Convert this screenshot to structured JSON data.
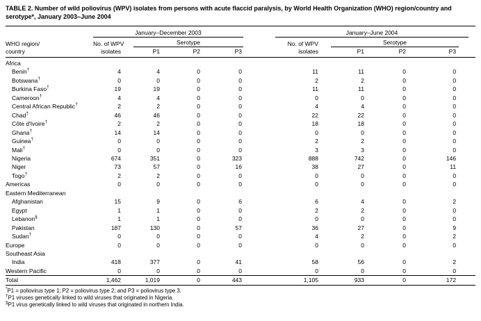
{
  "title": "TABLE 2. Number of wild poliovirus (WPV) isolates from persons with acute flaccid paralysis, by World Health Organization (WHO) region/country and serotype*, January 2003–June 2004",
  "table": {
    "head": {
      "group1": "January–December 2003",
      "group2": "January–June 2004",
      "region1": "WHO region/",
      "region2": "country",
      "isolates1": "No. of WPV",
      "isolates2": "isolates",
      "serotype": "Serotype",
      "p1": "P1",
      "p2": "P2",
      "p3": "P3"
    },
    "rows": [
      {
        "type": "section",
        "name": "Africa"
      },
      {
        "type": "country",
        "name": "Benin",
        "sup": "†",
        "values": [
          "4",
          "4",
          "0",
          "0",
          "11",
          "11",
          "0",
          "0"
        ]
      },
      {
        "type": "country",
        "name": "Botswana",
        "sup": "†",
        "values": [
          "0",
          "0",
          "0",
          "0",
          "2",
          "2",
          "0",
          "0"
        ]
      },
      {
        "type": "country",
        "name": "Burkina Faso",
        "sup": "†",
        "values": [
          "19",
          "19",
          "0",
          "0",
          "11",
          "11",
          "0",
          "0"
        ]
      },
      {
        "type": "country",
        "name": "Cameroon",
        "sup": "†",
        "values": [
          "4",
          "4",
          "0",
          "0",
          "0",
          "0",
          "0",
          "0"
        ]
      },
      {
        "type": "country",
        "name": "Central African Republic",
        "sup": "†",
        "values": [
          "2",
          "2",
          "0",
          "0",
          "4",
          "4",
          "0",
          "0"
        ]
      },
      {
        "type": "country",
        "name": "Chad",
        "sup": "†",
        "values": [
          "46",
          "46",
          "0",
          "0",
          "22",
          "22",
          "0",
          "0"
        ]
      },
      {
        "type": "country",
        "name": "Côte d'Ivoire",
        "sup": "†",
        "values": [
          "2",
          "2",
          "0",
          "0",
          "18",
          "18",
          "0",
          "0"
        ]
      },
      {
        "type": "country",
        "name": "Ghana",
        "sup": "†",
        "values": [
          "14",
          "14",
          "0",
          "0",
          "0",
          "0",
          "0",
          "0"
        ]
      },
      {
        "type": "country",
        "name": "Guinea",
        "sup": "†",
        "values": [
          "0",
          "0",
          "0",
          "0",
          "2",
          "2",
          "0",
          "0"
        ]
      },
      {
        "type": "country",
        "name": "Mali",
        "sup": "†",
        "values": [
          "0",
          "0",
          "0",
          "0",
          "3",
          "3",
          "0",
          "0"
        ]
      },
      {
        "type": "country",
        "name": "Nigeria",
        "values": [
          "674",
          "351",
          "0",
          "323",
          "888",
          "742",
          "0",
          "146"
        ]
      },
      {
        "type": "country",
        "name": "Niger",
        "values": [
          "73",
          "57",
          "0",
          "16",
          "38",
          "27",
          "0",
          "11"
        ]
      },
      {
        "type": "country",
        "name": "Togo",
        "sup": "†",
        "values": [
          "2",
          "2",
          "0",
          "0",
          "0",
          "0",
          "0",
          "0"
        ]
      },
      {
        "type": "region",
        "name": "Americas",
        "values": [
          "0",
          "0",
          "0",
          "0",
          "0",
          "0",
          "0",
          "0"
        ]
      },
      {
        "type": "section",
        "name": "Eastern Mediterranean"
      },
      {
        "type": "country",
        "name": "Afghanistan",
        "values": [
          "15",
          "9",
          "0",
          "6",
          "6",
          "4",
          "0",
          "2"
        ]
      },
      {
        "type": "country",
        "name": "Egypt",
        "values": [
          "1",
          "1",
          "0",
          "0",
          "2",
          "2",
          "0",
          "0"
        ]
      },
      {
        "type": "country",
        "name": "Lebanon",
        "sup": "§",
        "values": [
          "1",
          "1",
          "0",
          "0",
          "0",
          "0",
          "0",
          "0"
        ]
      },
      {
        "type": "country",
        "name": "Pakistan",
        "values": [
          "187",
          "130",
          "0",
          "57",
          "36",
          "27",
          "0",
          "9"
        ]
      },
      {
        "type": "country",
        "name": "Sudan",
        "sup": "†",
        "values": [
          "0",
          "0",
          "0",
          "0",
          "4",
          "2",
          "0",
          "2"
        ]
      },
      {
        "type": "region",
        "name": "Europe",
        "values": [
          "0",
          "0",
          "0",
          "0",
          "0",
          "0",
          "0",
          "0"
        ]
      },
      {
        "type": "section",
        "name": "Southeast Asia"
      },
      {
        "type": "country",
        "name": "India",
        "values": [
          "418",
          "377",
          "0",
          "41",
          "58",
          "56",
          "0",
          "2"
        ]
      },
      {
        "type": "region",
        "name": "Western Pacific",
        "values": [
          "0",
          "0",
          "0",
          "0",
          "0",
          "0",
          "0",
          "0"
        ]
      },
      {
        "type": "total",
        "name": "Total",
        "values": [
          "1,462",
          "1,019",
          "0",
          "443",
          "1,105",
          "933",
          "0",
          "172"
        ]
      }
    ]
  },
  "footnotes": [
    {
      "marker": "*",
      "text": "P1 = poliovirus type 1; P2 = poliovirus type 2; and P3 = poliovirus type 3."
    },
    {
      "marker": "†",
      "text": "P1 viruses genetically linked to wild viruses that originated in Nigeria."
    },
    {
      "marker": "§",
      "text": "P1 virus genetically linked to wild viruses that originated in northern India."
    }
  ]
}
